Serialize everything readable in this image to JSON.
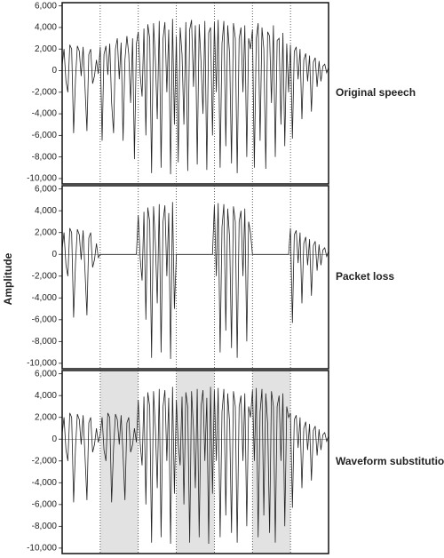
{
  "chart_data": [
    {
      "type": "line",
      "title": "Original speech",
      "ylabel": "Amplitude",
      "x": [
        0,
        1,
        2,
        3,
        4,
        5,
        6,
        7,
        8,
        9,
        10,
        11,
        12,
        13,
        14,
        15,
        16,
        17,
        18,
        19,
        20,
        21,
        22,
        23,
        24,
        25,
        26,
        27,
        28,
        29,
        30,
        31,
        32,
        33,
        34,
        35,
        36,
        37,
        38,
        39,
        40,
        41,
        42,
        43,
        44,
        45,
        46,
        47,
        48,
        49,
        50,
        51,
        52,
        53,
        54,
        55,
        56,
        57,
        58,
        59,
        60,
        61,
        62,
        63,
        64,
        65,
        66,
        67,
        68,
        69,
        70,
        71,
        72,
        73,
        74,
        75,
        76,
        77,
        78,
        79,
        80,
        81,
        82,
        83,
        84,
        85,
        86,
        87,
        88,
        89,
        90,
        91,
        92,
        93,
        94,
        95,
        96,
        97,
        98,
        99,
        100,
        101,
        102,
        103,
        104,
        105,
        106,
        107,
        108,
        109,
        110,
        111,
        112,
        113,
        114,
        115,
        116,
        117,
        118,
        119,
        120,
        121,
        122,
        123,
        124,
        125,
        126,
        127,
        128,
        129,
        130,
        131,
        132,
        133,
        134,
        135,
        136,
        137,
        138,
        139,
        140
      ],
      "series": [
        {
          "color": "#222222",
          "values": [
            500,
            2000,
            -1000,
            -2000,
            2400,
            2000,
            -5800,
            -800,
            2300,
            1800,
            -500,
            2200,
            -1500,
            -5600,
            1500,
            2000,
            -1200,
            -500,
            1000,
            -300,
            2200,
            -6500,
            1500,
            2300,
            -400,
            2500,
            -3000,
            -5800,
            2000,
            3000,
            -800,
            2600,
            -6500,
            1000,
            3200,
            1500,
            -3000,
            3000,
            -8200,
            2500,
            3600,
            -400,
            -2400,
            3900,
            -6000,
            4300,
            3000,
            -9500,
            4400,
            1000,
            -4500,
            4600,
            -9000,
            3000,
            4500,
            -2000,
            3800,
            -9600,
            4800,
            -5000,
            3200,
            -8500,
            4000,
            1500,
            -5000,
            4500,
            -9300,
            3800,
            4700,
            -1500,
            4200,
            -8700,
            4300,
            800,
            -4000,
            4600,
            -9200,
            3500,
            4000,
            -6000,
            4500,
            -2000,
            4700,
            -9000,
            2500,
            4600,
            -7000,
            4200,
            1500,
            -8600,
            4400,
            3000,
            -9500,
            3000,
            4000,
            -2000,
            4200,
            -8000,
            3000,
            2000,
            3800,
            -9000,
            3000,
            4400,
            -6500,
            4000,
            2000,
            -9100,
            3600,
            3200,
            -3000,
            4200,
            -8000,
            2800,
            3000,
            -5000,
            3500,
            -7000,
            2500,
            -2000,
            2400,
            -6300,
            1800,
            2200,
            -800,
            2000,
            -4500,
            1000,
            1600,
            -1000,
            1400,
            -3800,
            800,
            1200,
            -1500,
            900,
            -1000,
            400,
            600,
            -200,
            300
          ]
        }
      ],
      "xlim": [
        0,
        140
      ],
      "ylim": [
        -10500,
        6300
      ],
      "yticks": [
        {
          "value": 6000,
          "label": "6,000"
        },
        {
          "value": 4000,
          "label": "4,000"
        },
        {
          "value": 2000,
          "label": "2,000"
        },
        0,
        {
          "value": -2000,
          "label": "-2,000"
        },
        {
          "value": -4000,
          "label": "-4,000"
        },
        {
          "value": -6000,
          "label": "-6,000"
        },
        {
          "value": -8000,
          "label": "-8,000"
        },
        {
          "value": -10000,
          "label": "-10,000"
        }
      ],
      "frame_boundaries": [
        20,
        40,
        60,
        80,
        100,
        120
      ]
    },
    {
      "type": "line",
      "title": "Packet loss",
      "x": [
        0,
        1,
        2,
        3,
        4,
        5,
        6,
        7,
        8,
        9,
        10,
        11,
        12,
        13,
        14,
        15,
        16,
        17,
        18,
        19,
        20,
        21,
        22,
        23,
        24,
        25,
        26,
        27,
        28,
        29,
        30,
        31,
        32,
        33,
        34,
        35,
        36,
        37,
        38,
        39,
        40,
        41,
        42,
        43,
        44,
        45,
        46,
        47,
        48,
        49,
        50,
        51,
        52,
        53,
        54,
        55,
        56,
        57,
        58,
        59,
        60,
        61,
        62,
        63,
        64,
        65,
        66,
        67,
        68,
        69,
        70,
        71,
        72,
        73,
        74,
        75,
        76,
        77,
        78,
        79,
        80,
        81,
        82,
        83,
        84,
        85,
        86,
        87,
        88,
        89,
        90,
        91,
        92,
        93,
        94,
        95,
        96,
        97,
        98,
        99,
        100,
        101,
        102,
        103,
        104,
        105,
        106,
        107,
        108,
        109,
        110,
        111,
        112,
        113,
        114,
        115,
        116,
        117,
        118,
        119,
        120,
        121,
        122,
        123,
        124,
        125,
        126,
        127,
        128,
        129,
        130,
        131,
        132,
        133,
        134,
        135,
        136,
        137,
        138,
        139,
        140
      ],
      "series": [
        {
          "color": "#222222",
          "values": [
            500,
            2000,
            -1000,
            -2000,
            2400,
            2000,
            -5800,
            -800,
            2300,
            1800,
            -500,
            2200,
            -1500,
            -5600,
            1500,
            2000,
            -1200,
            -500,
            1000,
            -300,
            0,
            0,
            0,
            0,
            0,
            0,
            0,
            0,
            0,
            0,
            0,
            0,
            0,
            0,
            0,
            0,
            0,
            0,
            0,
            0,
            3600,
            -400,
            -2400,
            3900,
            -6000,
            4300,
            3000,
            -9500,
            4400,
            1000,
            -4500,
            4600,
            -9000,
            3000,
            4500,
            -2000,
            3800,
            -9600,
            4800,
            -5000,
            0,
            0,
            0,
            0,
            0,
            0,
            0,
            0,
            0,
            0,
            0,
            0,
            0,
            0,
            0,
            0,
            0,
            0,
            0,
            0,
            4500,
            -2000,
            4700,
            -9000,
            2500,
            4600,
            -7000,
            4200,
            1500,
            -8600,
            4400,
            3000,
            -9500,
            3000,
            4000,
            -2000,
            4200,
            -8000,
            3000,
            2000,
            0,
            0,
            0,
            0,
            0,
            0,
            0,
            0,
            0,
            0,
            0,
            0,
            0,
            0,
            0,
            0,
            0,
            0,
            0,
            0,
            2400,
            -6300,
            1800,
            2200,
            -800,
            2000,
            -4500,
            1000,
            1600,
            -1000,
            1400,
            -3800,
            800,
            1200,
            -1500,
            900,
            -1000,
            400,
            600,
            -200,
            300
          ]
        }
      ],
      "xlim": [
        0,
        140
      ],
      "ylim": [
        -10500,
        6300
      ],
      "yticks": [
        {
          "value": 6000,
          "label": "6,000"
        },
        {
          "value": 4000,
          "label": "4,000"
        },
        {
          "value": 2000,
          "label": "2,000"
        },
        0,
        {
          "value": -2000,
          "label": "-2,000"
        },
        {
          "value": -4000,
          "label": "-4,000"
        },
        {
          "value": -6000,
          "label": "-6,000"
        },
        {
          "value": -8000,
          "label": "-8,000"
        },
        {
          "value": -10000,
          "label": "-10,000"
        }
      ],
      "frame_boundaries": [
        20,
        40,
        60,
        80,
        100,
        120
      ]
    },
    {
      "type": "line",
      "title": "Waveform substitution",
      "x": [
        0,
        1,
        2,
        3,
        4,
        5,
        6,
        7,
        8,
        9,
        10,
        11,
        12,
        13,
        14,
        15,
        16,
        17,
        18,
        19,
        20,
        21,
        22,
        23,
        24,
        25,
        26,
        27,
        28,
        29,
        30,
        31,
        32,
        33,
        34,
        35,
        36,
        37,
        38,
        39,
        40,
        41,
        42,
        43,
        44,
        45,
        46,
        47,
        48,
        49,
        50,
        51,
        52,
        53,
        54,
        55,
        56,
        57,
        58,
        59,
        60,
        61,
        62,
        63,
        64,
        65,
        66,
        67,
        68,
        69,
        70,
        71,
        72,
        73,
        74,
        75,
        76,
        77,
        78,
        79,
        80,
        81,
        82,
        83,
        84,
        85,
        86,
        87,
        88,
        89,
        90,
        91,
        92,
        93,
        94,
        95,
        96,
        97,
        98,
        99,
        100,
        101,
        102,
        103,
        104,
        105,
        106,
        107,
        108,
        109,
        110,
        111,
        112,
        113,
        114,
        115,
        116,
        117,
        118,
        119,
        120,
        121,
        122,
        123,
        124,
        125,
        126,
        127,
        128,
        129,
        130,
        131,
        132,
        133,
        134,
        135,
        136,
        137,
        138,
        139,
        140
      ],
      "series": [
        {
          "color": "#222222",
          "values": [
            500,
            2000,
            -1000,
            -2000,
            2400,
            2000,
            -5800,
            -800,
            2300,
            1800,
            -500,
            2200,
            -1500,
            -5600,
            1500,
            2000,
            -1200,
            -500,
            1000,
            -300,
            500,
            2000,
            -1000,
            -2000,
            2400,
            2000,
            -5800,
            -800,
            2300,
            1800,
            -500,
            2200,
            -1500,
            -5600,
            1500,
            2000,
            -1200,
            -500,
            1000,
            -300,
            3600,
            -400,
            -2400,
            3900,
            -6000,
            4300,
            3000,
            -9500,
            4400,
            1000,
            -4500,
            4600,
            -9000,
            3000,
            4500,
            -2000,
            3800,
            -9600,
            4800,
            -5000,
            3600,
            -400,
            -2400,
            3900,
            -6000,
            4300,
            3000,
            -9500,
            4400,
            1000,
            -4500,
            4600,
            -9000,
            3000,
            4500,
            -2000,
            3800,
            -9600,
            4800,
            -5000,
            4500,
            -2000,
            4700,
            -9000,
            2500,
            4600,
            -7000,
            4200,
            1500,
            -8600,
            4400,
            3000,
            -9500,
            3000,
            4000,
            -2000,
            4200,
            -8000,
            3000,
            2000,
            4500,
            -2000,
            4700,
            -9000,
            2500,
            4600,
            -7000,
            4200,
            1500,
            -8600,
            4400,
            3000,
            -9500,
            3000,
            4000,
            -2000,
            4200,
            -8000,
            3000,
            2000,
            2400,
            -6300,
            1800,
            2200,
            -800,
            2000,
            -4500,
            1000,
            1600,
            -1000,
            1400,
            -3800,
            800,
            1200,
            -1500,
            900,
            -1000,
            400,
            600,
            -200,
            300
          ]
        }
      ],
      "xlim": [
        0,
        140
      ],
      "ylim": [
        -10500,
        6300
      ],
      "yticks": [
        {
          "value": 6000,
          "label": "6,000"
        },
        {
          "value": 4000,
          "label": "4,000"
        },
        {
          "value": 2000,
          "label": "2,000"
        },
        0,
        {
          "value": -2000,
          "label": "-2,000"
        },
        {
          "value": -4000,
          "label": "-4,000"
        },
        {
          "value": -6000,
          "label": "-6,000"
        },
        {
          "value": -8000,
          "label": "-8,000"
        },
        {
          "value": -10000,
          "label": "-10,000"
        }
      ],
      "frame_boundaries": [
        20,
        40,
        60,
        80,
        100,
        120
      ],
      "shaded_frames": [
        [
          20,
          40
        ],
        [
          60,
          80
        ],
        [
          100,
          120
        ]
      ],
      "shade_color": "#e2e2e2"
    }
  ]
}
